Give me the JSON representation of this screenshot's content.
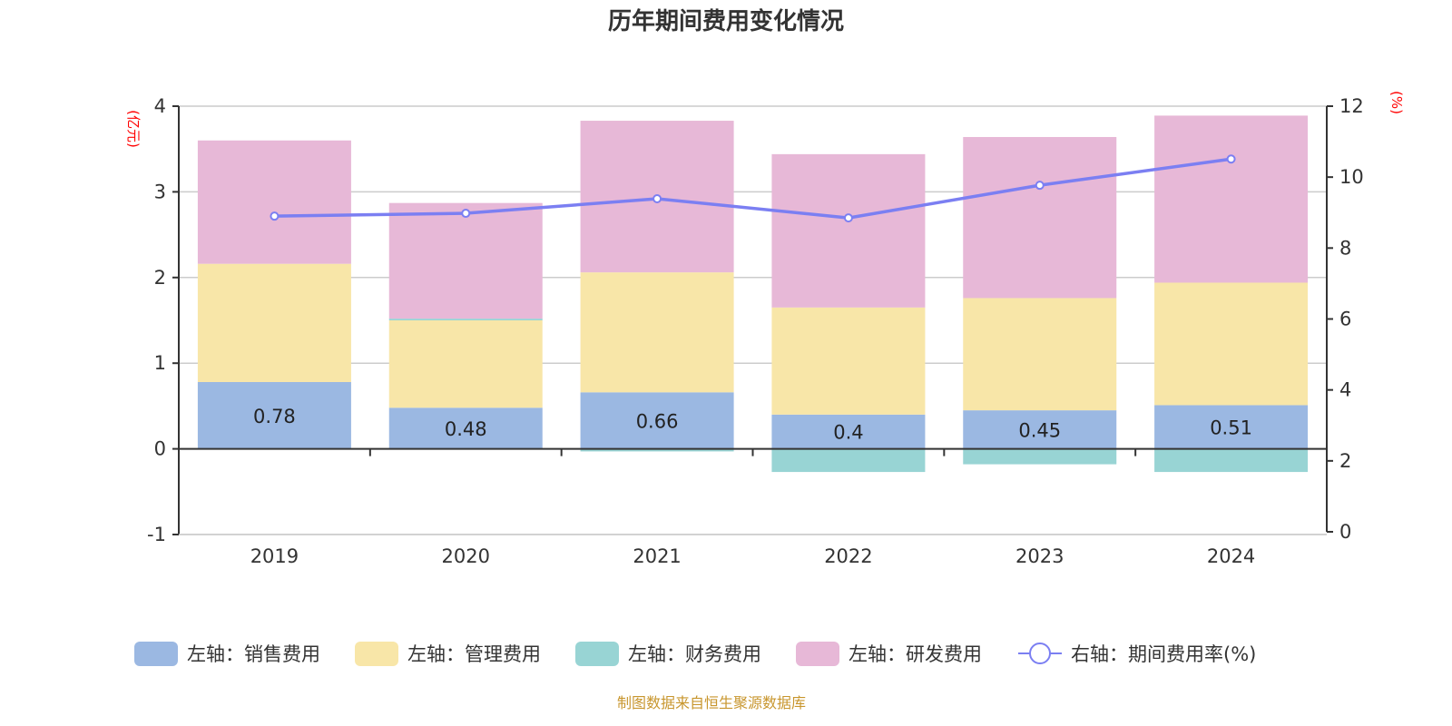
{
  "chart_data": {
    "type": "bar",
    "stacked": true,
    "title": "历年期间费用变化情况",
    "source": "制图数据来自恒生聚源数据库",
    "categories": [
      "2019",
      "2020",
      "2021",
      "2022",
      "2023",
      "2024"
    ],
    "left_axis": {
      "unit_label": "(亿元)",
      "range": [
        -1,
        4
      ],
      "ticks": [
        "4",
        "3",
        "2",
        "1",
        "0",
        "-1"
      ],
      "tick_values": [
        4,
        3,
        2,
        1,
        0,
        -1
      ],
      "grid": true
    },
    "right_axis": {
      "unit_label": "(%)",
      "range": [
        0,
        12
      ],
      "ticks": [
        "12",
        "10",
        "8",
        "6",
        "4",
        "2",
        "0"
      ],
      "tick_values": [
        12,
        10,
        8,
        6,
        4,
        2,
        0
      ]
    },
    "series": [
      {
        "name": "左轴：销售费用",
        "type": "bar",
        "axis": "left",
        "color": "#9bb8e2",
        "values": [
          0.78,
          0.48,
          0.66,
          0.4,
          0.45,
          0.51
        ],
        "labels": [
          "0.78",
          "0.48",
          "0.66",
          "0.4",
          "0.45",
          "0.51"
        ]
      },
      {
        "name": "左轴：管理费用",
        "type": "bar",
        "axis": "left",
        "color": "#f8e6a8",
        "values": [
          1.38,
          1.02,
          1.4,
          1.25,
          1.31,
          1.43
        ]
      },
      {
        "name": "左轴：财务费用",
        "type": "bar",
        "axis": "left",
        "color": "#98d4d4",
        "values": [
          0.0,
          0.02,
          -0.03,
          -0.27,
          -0.18,
          -0.27
        ]
      },
      {
        "name": "左轴：研发费用",
        "type": "bar",
        "axis": "left",
        "color": "#e7b8d7",
        "values": [
          1.44,
          1.35,
          1.77,
          1.79,
          1.88,
          1.95
        ]
      },
      {
        "name": "右轴：期间费用率(%)",
        "type": "line",
        "axis": "right",
        "color": "#7b7ff2",
        "values": [
          8.9,
          8.98,
          9.39,
          8.85,
          9.77,
          10.51
        ]
      }
    ]
  }
}
